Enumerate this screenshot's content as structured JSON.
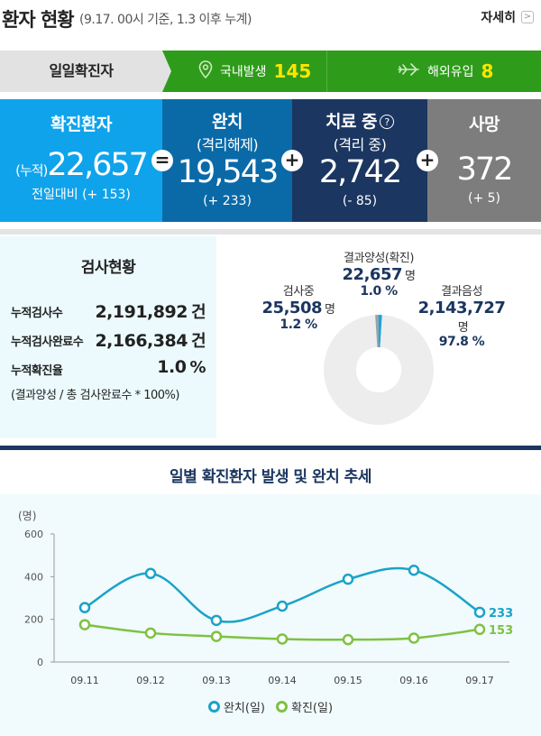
{
  "header": {
    "title": "환자 현황",
    "subtitle": "(9.17. 00시 기준, 1.3 이후 누계)",
    "more_label": "자세히"
  },
  "daily": {
    "label": "일일확진자",
    "domestic_label": "국내발생",
    "domestic_value": "145",
    "import_label": "해외유입",
    "import_value": "8"
  },
  "stats": {
    "confirmed": {
      "title": "확진환자",
      "prefix": "(누적)",
      "value": "22,657",
      "delta": "전일대비 (+ 153)"
    },
    "released": {
      "title": "완치",
      "sub": "(격리해제)",
      "value": "19,543",
      "delta": "(+ 233)"
    },
    "treating": {
      "title": "치료 중",
      "sub": "(격리 중)",
      "value": "2,742",
      "delta": "(- 85)"
    },
    "deaths": {
      "title": "사망",
      "value": "372",
      "delta": "(+ 5)"
    },
    "op_eq": "=",
    "op_plus": "+"
  },
  "tests": {
    "title": "검사현황",
    "rows": [
      {
        "label": "누적검사수",
        "value": "2,191,892",
        "unit": "건"
      },
      {
        "label": "누적검사완료수",
        "value": "2,166,384",
        "unit": "건"
      },
      {
        "label": "누적확진율",
        "value": "1.0",
        "unit": "%"
      }
    ],
    "note": "(결과양성 / 총 검사완료수 * 100%)"
  },
  "donut": {
    "positive": {
      "label": "결과양성(확진)",
      "value": "22,657",
      "unit": "명",
      "pct": "1.0 %",
      "fraction": 0.01,
      "color": "#1aa3e0"
    },
    "testing": {
      "label": "검사중",
      "value": "25,508",
      "unit": "명",
      "pct": "1.2 %",
      "fraction": 0.012,
      "color": "#95a5ab"
    },
    "negative": {
      "label": "결과음성",
      "value": "2,143,727",
      "unit": "명",
      "pct": "97.8 %",
      "fraction": 0.978,
      "color": "#ededed"
    }
  },
  "chart_data": {
    "type": "line",
    "title": "일별 확진환자 발생 및 완치 추세",
    "unit_label": "(명)",
    "categories": [
      "09.11",
      "09.12",
      "09.13",
      "09.14",
      "09.15",
      "09.16",
      "09.17"
    ],
    "ylim": [
      0,
      600
    ],
    "yticks": [
      "0",
      "200",
      "400",
      "600"
    ],
    "series": [
      {
        "name": "완치(일)",
        "color": "#1aa3c8",
        "values": [
          255,
          415,
          195,
          262,
          388,
          430,
          233
        ],
        "end_label": "233"
      },
      {
        "name": "확진(일)",
        "color": "#7dc242",
        "values": [
          175,
          136,
          120,
          108,
          105,
          112,
          153
        ],
        "end_label": "153"
      }
    ]
  }
}
